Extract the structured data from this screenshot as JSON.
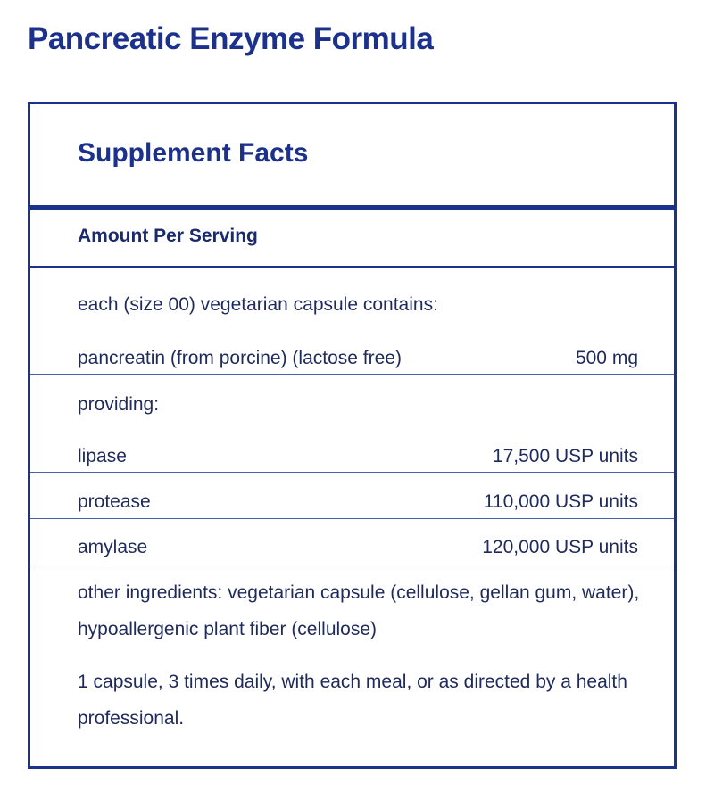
{
  "title": "Pancreatic Enzyme Formula",
  "facts": {
    "heading": "Supplement Facts",
    "amount_per_serving": "Amount Per Serving",
    "serving_note": "each (size 00) vegetarian capsule contains:",
    "main_ingredient": {
      "name": "pancreatin (from porcine) (lactose free)",
      "amount": "500 mg"
    },
    "providing_label": "providing:",
    "enzymes": [
      {
        "name": "lipase",
        "amount": "17,500 USP units"
      },
      {
        "name": "protease",
        "amount": "110,000 USP units"
      },
      {
        "name": "amylase",
        "amount": "120,000 USP units"
      }
    ],
    "other_ingredients": "other ingredients: vegetarian capsule (cellulose, gellan gum, water), hypoallergenic plant fiber (cellulose)",
    "directions": "1 capsule, 3 times daily, with each meal, or as directed by a health professional."
  },
  "colors": {
    "brand": "#1b318c",
    "text": "#1f2a5c"
  }
}
